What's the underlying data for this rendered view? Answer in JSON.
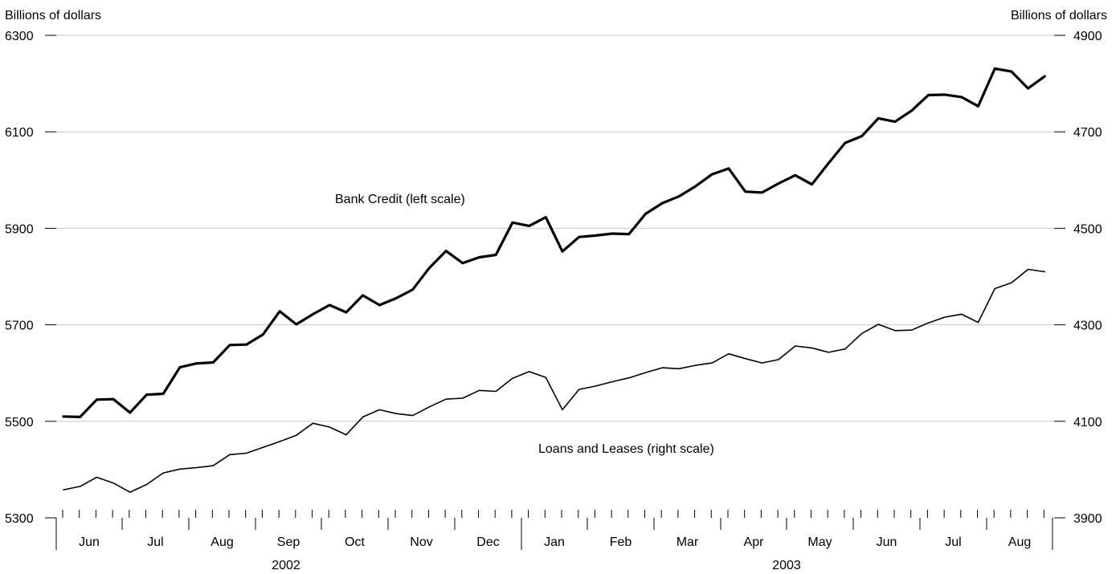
{
  "chart_data": {
    "type": "line",
    "left_axis": {
      "title": "Billions of dollars",
      "range": [
        5300,
        6300
      ],
      "ticks": [
        5300,
        5500,
        5700,
        5900,
        6100,
        6300
      ]
    },
    "right_axis": {
      "title": "Billions of dollars",
      "range": [
        3900,
        4900
      ],
      "ticks": [
        3900,
        4100,
        4300,
        4500,
        4700,
        4900
      ]
    },
    "grid": true,
    "x_axis": {
      "months": [
        "Jun",
        "Jul",
        "Aug",
        "Sep",
        "Oct",
        "Nov",
        "Dec",
        "Jan",
        "Feb",
        "Mar",
        "Apr",
        "May",
        "Jun",
        "Jul",
        "Aug"
      ],
      "years": [
        "2002",
        "2003"
      ]
    },
    "annotations": [
      "Bank Credit (left scale)",
      "Loans and Leases (right scale)"
    ],
    "series": [
      {
        "name": "Bank Credit",
        "axis": "left",
        "values": [
          5510,
          5509,
          5545,
          5546,
          5518,
          5555,
          5557,
          5612,
          5620,
          5622,
          5658,
          5659,
          5680,
          5728,
          5701,
          5722,
          5741,
          5726,
          5761,
          5741,
          5755,
          5773,
          5818,
          5853,
          5828,
          5840,
          5845,
          5912,
          5905,
          5923,
          5852,
          5882,
          5885,
          5889,
          5888,
          5930,
          5952,
          5966,
          5987,
          6012,
          6024,
          5976,
          5974,
          5993,
          6010,
          5991,
          6035,
          6077,
          6091,
          6128,
          6121,
          6144,
          6176,
          6177,
          6172,
          6153,
          6231,
          6225,
          6190,
          6215
        ]
      },
      {
        "name": "Loans and Leases",
        "axis": "right",
        "values": [
          3958,
          3965,
          3984,
          3972,
          3953,
          3969,
          3993,
          4001,
          4004,
          4008,
          4031,
          4034,
          4046,
          4058,
          4071,
          4096,
          4088,
          4072,
          4109,
          4124,
          4116,
          4112,
          4130,
          4146,
          4148,
          4164,
          4162,
          4189,
          4203,
          4191,
          4124,
          4166,
          4173,
          4182,
          4190,
          4201,
          4211,
          4209,
          4216,
          4221,
          4240,
          4230,
          4221,
          4228,
          4256,
          4252,
          4243,
          4250,
          4282,
          4301,
          4288,
          4289,
          4304,
          4316,
          4322,
          4305,
          4375,
          4387,
          4415,
          4410
        ]
      }
    ]
  }
}
